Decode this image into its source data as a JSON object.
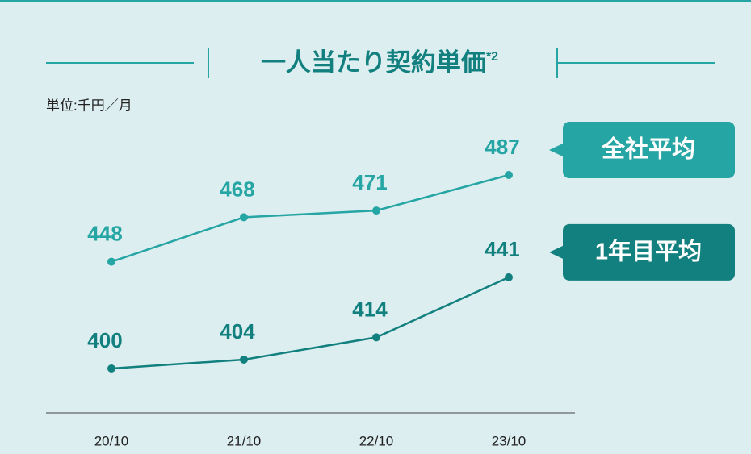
{
  "chart_data": {
    "type": "line",
    "title": "一人当たり契約単価",
    "title_superscript": "*2",
    "unit_label": "単位:千円／月",
    "categories": [
      "20/10",
      "21/10",
      "22/10",
      "23/10"
    ],
    "series": [
      {
        "name": "全社平均",
        "color": "#25a5a3",
        "values": [
          448,
          468,
          471,
          487
        ]
      },
      {
        "name": "1年目平均",
        "color": "#12807e",
        "values": [
          400,
          404,
          414,
          441
        ]
      }
    ]
  }
}
